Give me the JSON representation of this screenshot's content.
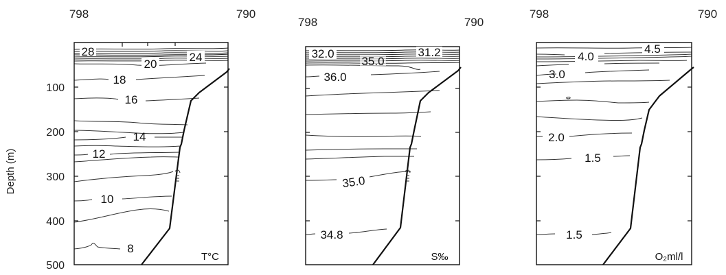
{
  "chart_data": [
    {
      "type": "contour",
      "variable_label": "T°C",
      "top_labels": [
        "798",
        "790"
      ],
      "ylabel": "Depth (m)",
      "yticks": [
        100,
        200,
        300,
        400,
        500
      ],
      "ylim": [
        0,
        500
      ],
      "contour_labels": [
        "28",
        "24",
        "20",
        "18",
        "16",
        "14",
        "12",
        "10",
        "8"
      ]
    },
    {
      "type": "contour",
      "variable_label": "S‰",
      "top_labels": [
        "798",
        "790"
      ],
      "ylim": [
        0,
        500
      ],
      "contour_labels": [
        "32.0",
        "31.2",
        "35.0",
        "36.0",
        "35.0",
        "34.8"
      ]
    },
    {
      "type": "contour",
      "variable_label": "O₂ml/l",
      "top_labels": [
        "798",
        "790"
      ],
      "ylim": [
        0,
        500
      ],
      "contour_labels": [
        "4.5",
        "4.0",
        "3.0",
        "2.0",
        "1.5",
        "1.5"
      ]
    }
  ]
}
